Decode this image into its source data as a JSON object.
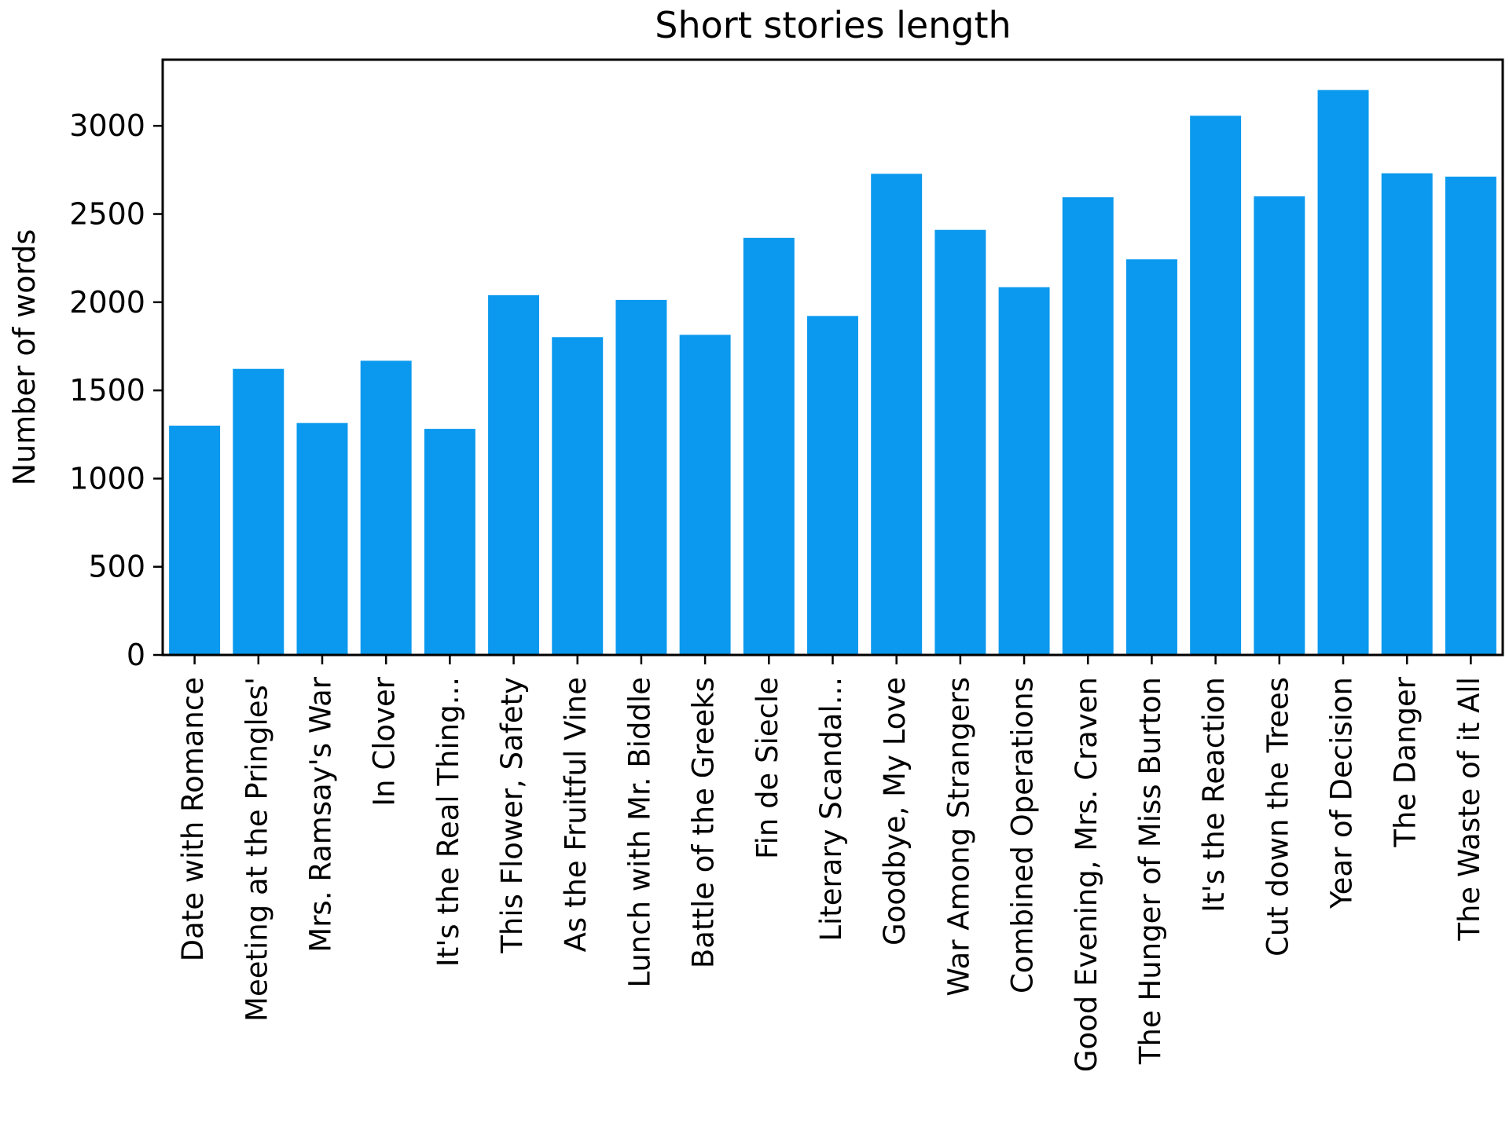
{
  "chart_data": {
    "type": "bar",
    "title": "Short stories length",
    "xlabel": "",
    "ylabel": "Number of words",
    "ylim": [
      0,
      3375
    ],
    "yticks": [
      0,
      500,
      1000,
      1500,
      2000,
      2500,
      3000
    ],
    "grid": false,
    "bar_color": "#0a99ee",
    "categories": [
      "Date with Romance",
      "Meeting at the Pringles'",
      "Mrs. Ramsay's War",
      "In Clover",
      "It's the Real Thing...",
      "This Flower, Safety",
      "As the Fruitful Vine",
      "Lunch with Mr. Biddle",
      "Battle of the Greeks",
      "Fin de Siecle",
      "Literary Scandal...",
      "Goodbye, My Love",
      "War Among Strangers",
      "Combined Operations",
      "Good Evening, Mrs. Craven",
      "The Hunger of Miss Burton",
      "It's the Reaction",
      "Cut down the Trees",
      "Year of Decision",
      "The Danger",
      "The Waste of it All"
    ],
    "values": [
      1300,
      1622,
      1315,
      1668,
      1282,
      2040,
      1802,
      2013,
      1815,
      2365,
      1922,
      2728,
      2410,
      2085,
      2595,
      2243,
      3057,
      2600,
      3203,
      2731,
      2712
    ]
  }
}
